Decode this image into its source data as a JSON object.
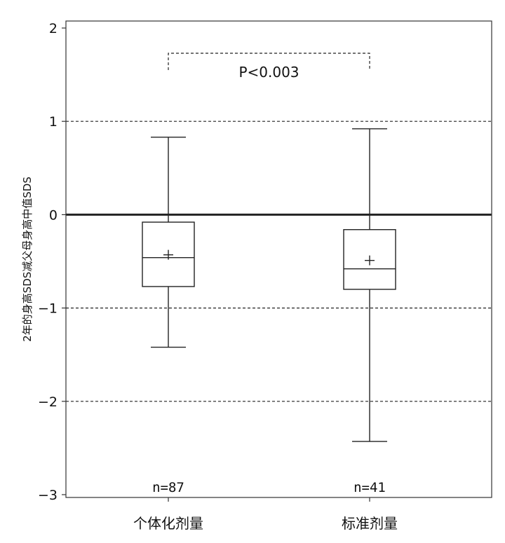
{
  "chart_data": {
    "type": "box",
    "ylabel": "2年的身高SDS减父母身高中值SDS",
    "ylim": [
      -3,
      2
    ],
    "yticks": [
      2,
      1,
      0,
      -1,
      -2,
      -3
    ],
    "ytick_labels": [
      "2",
      "1",
      "0",
      "−1",
      "−2",
      "−3"
    ],
    "reference_lines": [
      {
        "y": 1,
        "style": "dashed"
      },
      {
        "y": 0,
        "style": "solid-bold"
      },
      {
        "y": -1,
        "style": "dashed"
      },
      {
        "y": -2,
        "style": "dashed"
      }
    ],
    "groups": [
      {
        "name": "个体化剂量",
        "n_label": "n=87",
        "whisker_low": -1.42,
        "q1": -0.77,
        "median": -0.46,
        "q3": -0.08,
        "whisker_high": 0.83,
        "mean": -0.43
      },
      {
        "name": "标准剂量",
        "n_label": "n=41",
        "whisker_low": -2.43,
        "q1": -0.8,
        "median": -0.58,
        "q3": -0.16,
        "whisker_high": 0.92,
        "mean": -0.49
      }
    ],
    "significance": {
      "label": "P<0.003",
      "y": 1.73
    }
  }
}
